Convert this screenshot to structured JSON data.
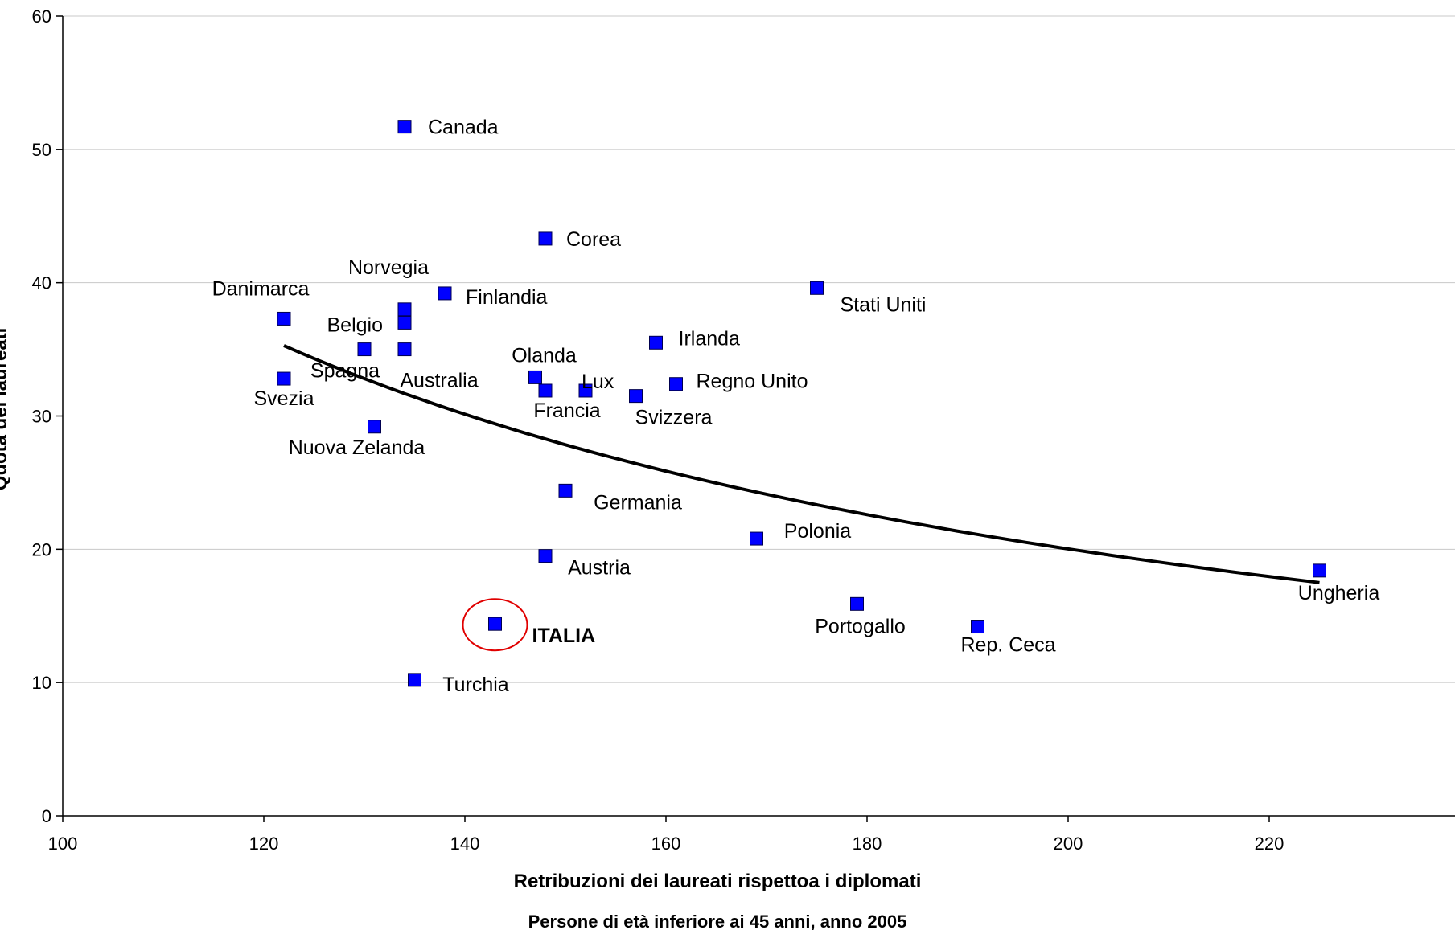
{
  "chart_data": {
    "type": "scatter",
    "xlabel": "Retribuzioni  dei laureati rispettoa i diplomati",
    "ylabel": "Quota dei laureati",
    "note": "Persone di età inferiore ai 45 anni, anno 2005",
    "xlim": [
      100,
      240
    ],
    "ylim": [
      0,
      60
    ],
    "xticks": [
      "100",
      "120",
      "140",
      "160",
      "180",
      "200",
      "220"
    ],
    "yticks": [
      "0",
      "10",
      "20",
      "30",
      "40",
      "50",
      "60"
    ],
    "grid": "horizontal",
    "marker_color": "#0000ff",
    "trend_color": "#000000",
    "highlight_color": "#e00000",
    "points": [
      {
        "label": "Canada",
        "x": 134,
        "y": 51.7
      },
      {
        "label": "Corea",
        "x": 148,
        "y": 43.3
      },
      {
        "label": "Stati Uniti",
        "x": 175,
        "y": 39.6
      },
      {
        "label": "Finlandia",
        "x": 138,
        "y": 39.2
      },
      {
        "label": "Norvegia",
        "x": 134,
        "y": 38.0
      },
      {
        "label": "Belgio",
        "x": 134,
        "y": 37.0
      },
      {
        "label": "Danimarca",
        "x": 122,
        "y": 37.3
      },
      {
        "label": "Irlanda",
        "x": 159,
        "y": 35.5
      },
      {
        "label": "Spagna",
        "x": 130,
        "y": 35.0
      },
      {
        "label": "Australia",
        "x": 134,
        "y": 35.0
      },
      {
        "label": "Olanda",
        "x": 147,
        "y": 32.9
      },
      {
        "label": "Svezia",
        "x": 122,
        "y": 32.8
      },
      {
        "label": "Regno Unito",
        "x": 161,
        "y": 32.4
      },
      {
        "label": "Francia",
        "x": 148,
        "y": 31.9
      },
      {
        "label": "Lux",
        "x": 152,
        "y": 31.9
      },
      {
        "label": "Svizzera",
        "x": 157,
        "y": 31.5
      },
      {
        "label": "Nuova Zelanda",
        "x": 131,
        "y": 29.2
      },
      {
        "label": "Germania",
        "x": 150,
        "y": 24.4
      },
      {
        "label": "Polonia",
        "x": 169,
        "y": 20.8
      },
      {
        "label": "Austria",
        "x": 148,
        "y": 19.5
      },
      {
        "label": "Ungheria",
        "x": 225,
        "y": 18.4
      },
      {
        "label": "Portogallo",
        "x": 179,
        "y": 15.9
      },
      {
        "label": "ITALIA",
        "x": 143,
        "y": 14.4,
        "highlight": true
      },
      {
        "label": "Rep. Ceca",
        "x": 191,
        "y": 14.2
      },
      {
        "label": "Turchia",
        "x": 135,
        "y": 10.2
      }
    ],
    "trendline": {
      "type": "power",
      "x_range": [
        122,
        225
      ]
    }
  }
}
